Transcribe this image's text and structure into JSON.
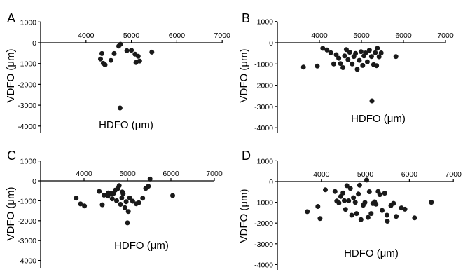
{
  "chart_data": [
    {
      "panel": "A",
      "type": "scatter",
      "xlabel": "HDFO (μm)",
      "ylabel": "VDFO (μm)",
      "xlim": [
        3000,
        7000
      ],
      "ylim": [
        -4500,
        1000
      ],
      "xticks": [
        "4000",
        "5000",
        "6000",
        "7000"
      ],
      "yticks": [
        "1000",
        "0",
        "-1000",
        "-2000",
        "-3000",
        "-4000"
      ],
      "series": [
        {
          "points": [
            [
              4320,
              -780
            ],
            [
              4350,
              -520
            ],
            [
              4380,
              -990
            ],
            [
              4420,
              -1060
            ],
            [
              4550,
              -850
            ],
            [
              4620,
              -520
            ],
            [
              4720,
              -160
            ],
            [
              4760,
              -70
            ],
            [
              4900,
              -380
            ],
            [
              5000,
              -360
            ],
            [
              5080,
              -550
            ],
            [
              5100,
              -950
            ],
            [
              5150,
              -650
            ],
            [
              5180,
              -880
            ],
            [
              5450,
              -450
            ],
            [
              4750,
              -3130
            ]
          ]
        }
      ]
    },
    {
      "panel": "B",
      "type": "scatter",
      "xlabel": "HDFO (μm)",
      "ylabel": "VDFO (μm)",
      "xlim": [
        3000,
        7000
      ],
      "ylim": [
        -4500,
        1000
      ],
      "xticks": [
        "4000",
        "5000",
        "6000",
        "7000"
      ],
      "yticks": [
        "1000",
        "0",
        "-1000",
        "-2000",
        "-3000",
        "-4000"
      ],
      "series": [
        {
          "points": [
            [
              3620,
              -1150
            ],
            [
              3950,
              -1100
            ],
            [
              4080,
              -260
            ],
            [
              4180,
              -340
            ],
            [
              4270,
              -470
            ],
            [
              4340,
              -1000
            ],
            [
              4400,
              -560
            ],
            [
              4460,
              -730
            ],
            [
              4500,
              -980
            ],
            [
              4560,
              -1170
            ],
            [
              4600,
              -620
            ],
            [
              4680,
              -800
            ],
            [
              4720,
              -450
            ],
            [
              4780,
              -1000
            ],
            [
              4820,
              -650
            ],
            [
              4860,
              -500
            ],
            [
              4900,
              -1250
            ],
            [
              4950,
              -830
            ],
            [
              4990,
              -420
            ],
            [
              5030,
              -1070
            ],
            [
              5060,
              -620
            ],
            [
              5100,
              -480
            ],
            [
              5140,
              -900
            ],
            [
              5190,
              -350
            ],
            [
              5240,
              -650
            ],
            [
              5290,
              -1030
            ],
            [
              5330,
              -470
            ],
            [
              5380,
              -260
            ],
            [
              5420,
              -660
            ],
            [
              5470,
              -480
            ],
            [
              5820,
              -650
            ],
            [
              5250,
              -2740
            ],
            [
              5360,
              -1080
            ],
            [
              4640,
              -320
            ]
          ]
        }
      ]
    },
    {
      "panel": "C",
      "type": "scatter",
      "xlabel": "HDFO (μm)",
      "ylabel": "VDFO (μm)",
      "xlim": [
        3000,
        7000
      ],
      "ylim": [
        -4500,
        1000
      ],
      "xticks": [
        "4000",
        "5000",
        "6000",
        "7000"
      ],
      "yticks": [
        "1000",
        "0",
        "-1000",
        "-2000",
        "-3000",
        "-4000"
      ],
      "series": [
        {
          "points": [
            [
              3820,
              -870
            ],
            [
              3920,
              -1160
            ],
            [
              4010,
              -1260
            ],
            [
              4350,
              -530
            ],
            [
              4420,
              -1200
            ],
            [
              4460,
              -720
            ],
            [
              4550,
              -760
            ],
            [
              4620,
              -640
            ],
            [
              4650,
              -900
            ],
            [
              4680,
              -630
            ],
            [
              4720,
              -470
            ],
            [
              4750,
              -1000
            ],
            [
              4780,
              -380
            ],
            [
              4810,
              -240
            ],
            [
              4840,
              -1180
            ],
            [
              4870,
              -860
            ],
            [
              4900,
              -650
            ],
            [
              4940,
              -1350
            ],
            [
              4970,
              -1050
            ],
            [
              5020,
              -1540
            ],
            [
              5000,
              -2110
            ],
            [
              5050,
              -860
            ],
            [
              5120,
              -1020
            ],
            [
              5200,
              -1150
            ],
            [
              5260,
              -1100
            ],
            [
              5350,
              -870
            ],
            [
              5420,
              -380
            ],
            [
              5480,
              -270
            ],
            [
              5520,
              90
            ],
            [
              6040,
              -740
            ],
            [
              4560,
              -610
            ],
            [
              4880,
              -560
            ]
          ]
        }
      ]
    },
    {
      "panel": "D",
      "type": "scatter",
      "xlabel": "HDFO (μm)",
      "ylabel": "VDFO (μm)",
      "xlim": [
        3000,
        7000
      ],
      "ylim": [
        -4500,
        1000
      ],
      "xticks": [
        "4000",
        "5000",
        "6000",
        "7000"
      ],
      "yticks": [
        "1000",
        "0",
        "-1000",
        "-2000",
        "-3000",
        "-4000"
      ],
      "series": [
        {
          "points": [
            [
              3680,
              -1450
            ],
            [
              3920,
              -1200
            ],
            [
              3970,
              -1780
            ],
            [
              4090,
              -400
            ],
            [
              4310,
              -480
            ],
            [
              4350,
              -940
            ],
            [
              4400,
              -1030
            ],
            [
              4440,
              -720
            ],
            [
              4490,
              -550
            ],
            [
              4520,
              -920
            ],
            [
              4550,
              -1340
            ],
            [
              4580,
              -200
            ],
            [
              4620,
              -930
            ],
            [
              4660,
              -330
            ],
            [
              4690,
              -1620
            ],
            [
              4730,
              -780
            ],
            [
              4770,
              -1000
            ],
            [
              4800,
              -1540
            ],
            [
              4840,
              -600
            ],
            [
              4870,
              -180
            ],
            [
              4900,
              -1830
            ],
            [
              4950,
              -1140
            ],
            [
              4990,
              -1010
            ],
            [
              5030,
              70
            ],
            [
              5060,
              -1730
            ],
            [
              5090,
              -490
            ],
            [
              5130,
              -1540
            ],
            [
              5170,
              -1060
            ],
            [
              5210,
              -980
            ],
            [
              5240,
              -1090
            ],
            [
              5290,
              -480
            ],
            [
              5330,
              -630
            ],
            [
              5380,
              -1390
            ],
            [
              5440,
              -560
            ],
            [
              5490,
              -1620
            ],
            [
              5500,
              -1910
            ],
            [
              5580,
              -1160
            ],
            [
              5640,
              -1050
            ],
            [
              5700,
              -1680
            ],
            [
              5820,
              -1270
            ],
            [
              5900,
              -1330
            ],
            [
              6120,
              -1750
            ],
            [
              6500,
              -1000
            ]
          ]
        }
      ]
    }
  ]
}
